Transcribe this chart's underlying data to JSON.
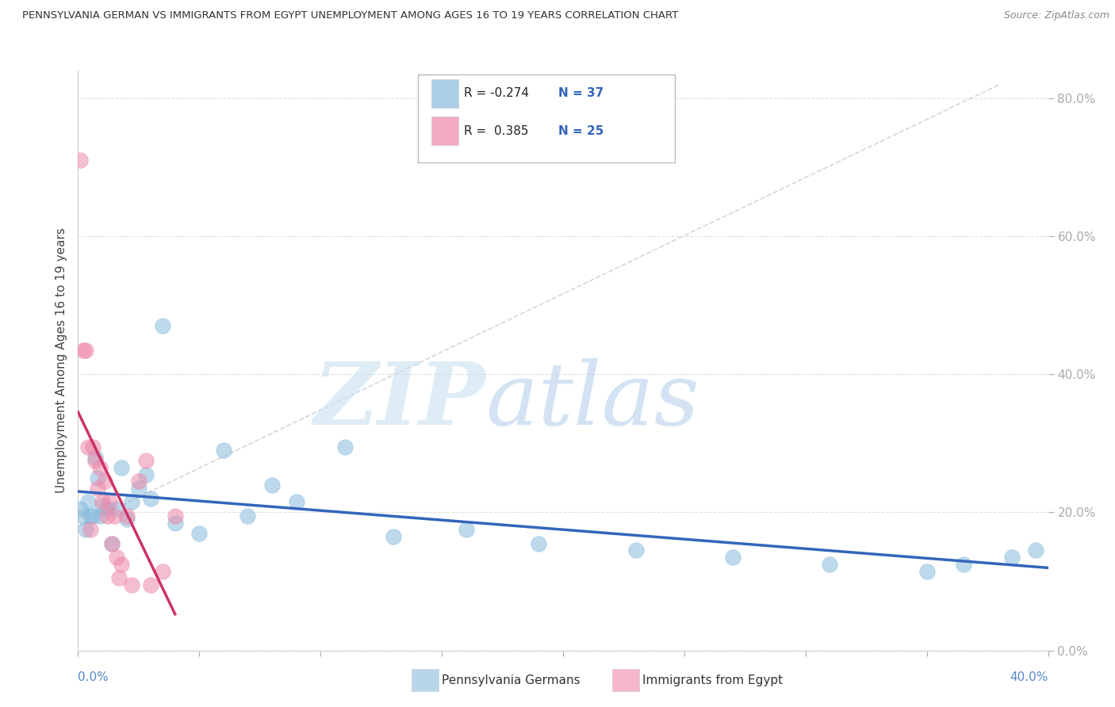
{
  "title": "PENNSYLVANIA GERMAN VS IMMIGRANTS FROM EGYPT UNEMPLOYMENT AMONG AGES 16 TO 19 YEARS CORRELATION CHART",
  "source": "Source: ZipAtlas.com",
  "ylabel": "Unemployment Among Ages 16 to 19 years",
  "series1_label": "Pennsylvania Germans",
  "series2_label": "Immigrants from Egypt",
  "series1_color": "#88bbdd",
  "series2_color": "#ee88aa",
  "trend1_color": "#3366bb",
  "trend2_color": "#cc3366",
  "ref_line_color": "#cccccc",
  "watermark_zip": "ZIP",
  "watermark_atlas": "atlas",
  "xlim": [
    0.0,
    0.4
  ],
  "ylim": [
    0.0,
    0.84
  ],
  "yticks": [
    0.0,
    0.2,
    0.4,
    0.6,
    0.8
  ],
  "ytick_labels": [
    "0.0%",
    "20.0%",
    "40.0%",
    "60.0%",
    "80.0%"
  ],
  "xtick_vals": [
    0.0,
    0.05,
    0.1,
    0.15,
    0.2,
    0.25,
    0.3,
    0.35,
    0.4
  ],
  "background_color": "#ffffff",
  "grid_color": "#dddddd",
  "axis_color": "#cccccc",
  "tick_color": "#aaaaaa",
  "yticklabel_color": "#5588cc",
  "legend_r1": "R = -0.274",
  "legend_n1": "N = 37",
  "legend_r2": "R =  0.385",
  "legend_n2": "N = 25",
  "series1_x": [
    0.001,
    0.002,
    0.003,
    0.004,
    0.005,
    0.006,
    0.007,
    0.008,
    0.009,
    0.01,
    0.012,
    0.014,
    0.016,
    0.018,
    0.02,
    0.022,
    0.025,
    0.028,
    0.03,
    0.035,
    0.04,
    0.05,
    0.06,
    0.07,
    0.08,
    0.09,
    0.11,
    0.13,
    0.16,
    0.19,
    0.23,
    0.27,
    0.31,
    0.35,
    0.365,
    0.385,
    0.395
  ],
  "series1_y": [
    0.205,
    0.195,
    0.175,
    0.215,
    0.195,
    0.195,
    0.28,
    0.25,
    0.195,
    0.21,
    0.205,
    0.155,
    0.205,
    0.265,
    0.19,
    0.215,
    0.235,
    0.255,
    0.22,
    0.47,
    0.185,
    0.17,
    0.29,
    0.195,
    0.24,
    0.215,
    0.295,
    0.165,
    0.175,
    0.155,
    0.145,
    0.135,
    0.125,
    0.115,
    0.125,
    0.135,
    0.145
  ],
  "series2_x": [
    0.001,
    0.002,
    0.003,
    0.004,
    0.005,
    0.006,
    0.007,
    0.008,
    0.009,
    0.01,
    0.011,
    0.012,
    0.013,
    0.014,
    0.015,
    0.016,
    0.017,
    0.018,
    0.02,
    0.022,
    0.025,
    0.028,
    0.03,
    0.035,
    0.04
  ],
  "series2_y": [
    0.71,
    0.435,
    0.435,
    0.295,
    0.175,
    0.295,
    0.275,
    0.235,
    0.265,
    0.215,
    0.245,
    0.195,
    0.215,
    0.155,
    0.195,
    0.135,
    0.105,
    0.125,
    0.195,
    0.095,
    0.245,
    0.275,
    0.095,
    0.115,
    0.195
  ]
}
